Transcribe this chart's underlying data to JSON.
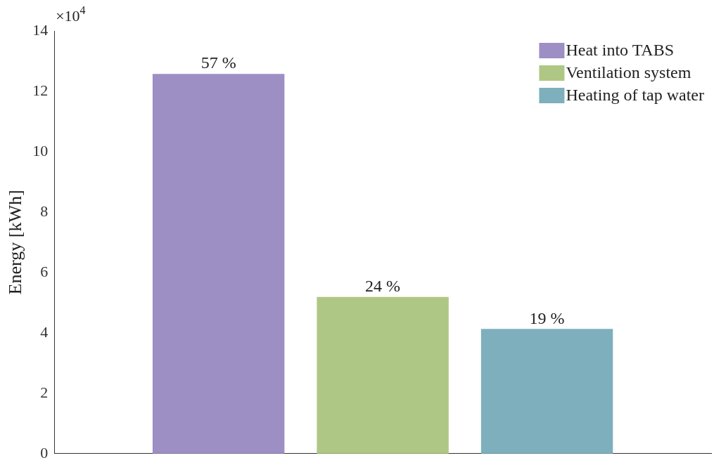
{
  "chart_data": {
    "type": "bar",
    "ylabel": "Energy [kWh]",
    "annotations": [
      "×10$^{4}$",
      "57 %",
      "24 %",
      "19 %"
    ],
    "categories": [
      null,
      null,
      null
    ],
    "ylim": [
      0,
      14
    ],
    "yticks": [
      0,
      2,
      4,
      6,
      8,
      10,
      12,
      14
    ],
    "grid": false,
    "legend": "top right",
    "series": [
      {
        "name": "Heat into TABS",
        "color": "#9d8ec4",
        "values": [
          12.57,
          null,
          null
        ]
      },
      {
        "name": "Ventilation system",
        "color": "#afc784",
        "values": [
          null,
          5.18,
          null
        ]
      },
      {
        "name": "Heating of tap water",
        "color": "#7eafbc",
        "values": [
          null,
          null,
          4.12
        ]
      }
    ]
  }
}
